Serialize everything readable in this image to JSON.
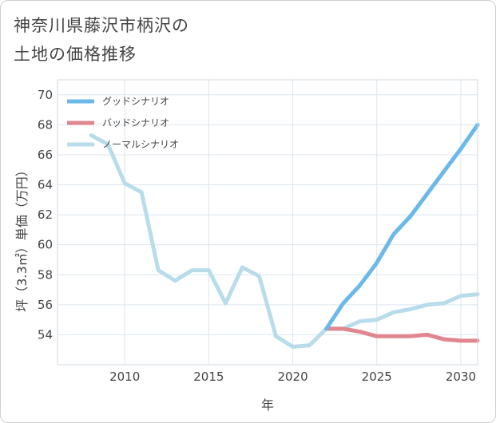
{
  "title": "神奈川県藤沢市柄沢の\n土地の価格推移",
  "chart_data": {
    "type": "line",
    "xlabel": "年",
    "ylabel": "坪（3.3㎡）単価（万円）",
    "xlim": [
      2006,
      2031
    ],
    "ylim": [
      52,
      71
    ],
    "xticks": [
      2010,
      2015,
      2020,
      2025,
      2030
    ],
    "yticks": [
      54,
      56,
      58,
      60,
      62,
      64,
      66,
      68,
      70
    ],
    "grid": true,
    "legend_position": "top-left",
    "series": [
      {
        "name": "グッドシナリオ",
        "color": "#6bb8ea",
        "x": [
          2022,
          2023,
          2024,
          2025,
          2026,
          2027,
          2028,
          2029,
          2030,
          2031
        ],
        "y": [
          54.4,
          56.1,
          57.3,
          58.8,
          60.7,
          61.9,
          63.4,
          64.9,
          66.4,
          68.0
        ]
      },
      {
        "name": "バッドシナリオ",
        "color": "#e0868f",
        "x": [
          2022,
          2023,
          2024,
          2025,
          2026,
          2027,
          2028,
          2029,
          2030,
          2031
        ],
        "y": [
          54.4,
          54.4,
          54.2,
          53.9,
          53.9,
          53.9,
          54.0,
          53.7,
          53.6,
          53.6
        ]
      },
      {
        "name": "ノーマルシナリオ",
        "color": "#b9dcea",
        "x": [
          2008,
          2009,
          2010,
          2011,
          2012,
          2013,
          2014,
          2015,
          2016,
          2017,
          2018,
          2019,
          2020,
          2021,
          2022,
          2023,
          2024,
          2025,
          2026,
          2027,
          2028,
          2029,
          2030,
          2031
        ],
        "y": [
          67.3,
          66.7,
          64.1,
          63.5,
          58.3,
          57.6,
          58.3,
          58.3,
          56.1,
          58.5,
          57.9,
          53.9,
          53.2,
          53.3,
          54.4,
          54.4,
          54.9,
          55.0,
          55.5,
          55.7,
          56.0,
          56.1,
          56.6,
          56.7
        ]
      }
    ]
  }
}
